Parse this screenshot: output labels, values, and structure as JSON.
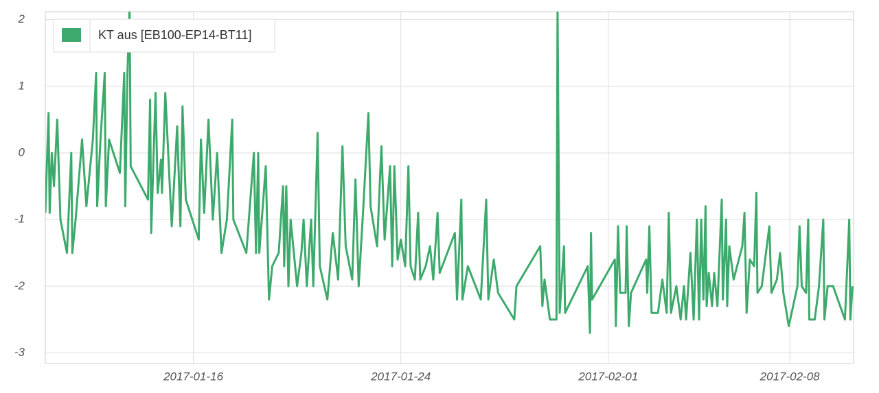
{
  "chart_data": {
    "type": "line",
    "x": [
      "2017-01-10 07:00",
      "2017-01-10 10:00",
      "2017-01-10 11:00",
      "2017-01-10 13:00",
      "2017-01-10 15:00",
      "2017-01-10 18:00",
      "2017-01-10 21:00",
      "2017-01-11 03:00",
      "2017-01-11 07:00",
      "2017-01-11 08:00",
      "2017-01-11 11:00",
      "2017-01-11 17:00",
      "2017-01-11 21:00",
      "2017-01-12 03:00",
      "2017-01-12 06:00",
      "2017-01-12 07:00",
      "2017-01-12 10:00",
      "2017-01-12 14:00",
      "2017-01-12 15:00",
      "2017-01-12 18:00",
      "2017-01-13 04:00",
      "2017-01-13 08:00",
      "2017-01-13 09:00",
      "2017-01-13 11:00",
      "2017-01-13 13:00",
      "2017-01-13 14:00",
      "2017-01-14 06:00",
      "2017-01-14 08:00",
      "2017-01-14 09:00",
      "2017-01-14 13:00",
      "2017-01-14 15:00",
      "2017-01-14 18:00",
      "2017-01-14 19:00",
      "2017-01-14 22:00",
      "2017-01-15 04:00",
      "2017-01-15 09:00",
      "2017-01-15 12:00",
      "2017-01-15 14:00",
      "2017-01-15 17:00",
      "2017-01-16 05:00",
      "2017-01-16 07:00",
      "2017-01-16 10:00",
      "2017-01-16 14:00",
      "2017-01-16 18:00",
      "2017-01-16 22:00",
      "2017-01-17 02:00",
      "2017-01-17 07:00",
      "2017-01-17 12:00",
      "2017-01-17 13:00",
      "2017-01-18 01:00",
      "2017-01-18 08:00",
      "2017-01-18 10:00",
      "2017-01-18 12:00",
      "2017-01-18 13:00",
      "2017-01-18 19:00",
      "2017-01-18 22:00",
      "2017-01-19 01:00",
      "2017-01-19 07:00",
      "2017-01-19 09:00",
      "2017-01-19 11:00",
      "2017-01-19 12:00",
      "2017-01-19 14:00",
      "2017-01-19 16:00",
      "2017-01-19 18:00",
      "2017-01-20 00:00",
      "2017-01-20 04:00",
      "2017-01-20 06:00",
      "2017-01-20 09:00",
      "2017-01-20 13:00",
      "2017-01-20 15:00",
      "2017-01-20 19:00",
      "2017-01-20 21:00",
      "2017-01-21 04:00",
      "2017-01-21 09:00",
      "2017-01-21 14:00",
      "2017-01-21 18:00",
      "2017-01-21 21:00",
      "2017-01-22 03:00",
      "2017-01-22 06:00",
      "2017-01-22 09:00",
      "2017-01-22 13:00",
      "2017-01-22 18:00",
      "2017-01-22 20:00",
      "2017-01-23 02:00",
      "2017-01-23 06:00",
      "2017-01-23 09:00",
      "2017-01-23 14:00",
      "2017-01-23 16:00",
      "2017-01-23 18:00",
      "2017-01-23 21:00",
      "2017-01-24 00:00",
      "2017-01-24 04:00",
      "2017-01-24 07:00",
      "2017-01-24 09:00",
      "2017-01-24 13:00",
      "2017-01-24 16:00",
      "2017-01-24 18:00",
      "2017-01-24 23:00",
      "2017-01-25 03:00",
      "2017-01-25 06:00",
      "2017-01-25 10:00",
      "2017-01-25 12:00",
      "2017-01-26 02:00",
      "2017-01-26 04:00",
      "2017-01-26 08:00",
      "2017-01-26 09:00",
      "2017-01-26 14:00",
      "2017-01-27 02:00",
      "2017-01-27 07:00",
      "2017-01-27 09:00",
      "2017-01-27 14:00",
      "2017-01-27 18:00",
      "2017-01-28 09:00",
      "2017-01-28 11:00",
      "2017-01-29 09:00",
      "2017-01-29 11:00",
      "2017-01-29 13:00",
      "2017-01-29 18:00",
      "2017-01-30 00:00",
      "2017-01-30 01:00",
      "2017-01-30 03:00",
      "2017-01-30 07:00",
      "2017-01-30 08:00",
      "2017-01-31 05:00",
      "2017-01-31 07:00",
      "2017-01-31 08:00",
      "2017-01-31 09:00",
      "2017-02-01 06:00",
      "2017-02-01 07:00",
      "2017-02-01 09:00",
      "2017-02-01 11:00",
      "2017-02-01 16:00",
      "2017-02-01 17:00",
      "2017-02-01 19:00",
      "2017-02-01 21:00",
      "2017-02-02 11:00",
      "2017-02-02 12:00",
      "2017-02-02 14:00",
      "2017-02-02 16:00",
      "2017-02-02 22:00",
      "2017-02-03 02:00",
      "2017-02-03 06:00",
      "2017-02-03 08:00",
      "2017-02-03 10:00",
      "2017-02-03 15:00",
      "2017-02-03 19:00",
      "2017-02-03 22:00",
      "2017-02-04 00:00",
      "2017-02-04 04:00",
      "2017-02-04 07:00",
      "2017-02-04 10:00",
      "2017-02-04 12:00",
      "2017-02-04 14:00",
      "2017-02-04 16:00",
      "2017-02-04 18:00",
      "2017-02-04 19:00",
      "2017-02-04 21:00",
      "2017-02-05 00:00",
      "2017-02-05 02:00",
      "2017-02-05 05:00",
      "2017-02-05 09:00",
      "2017-02-05 10:00",
      "2017-02-05 13:00",
      "2017-02-05 14:00",
      "2017-02-05 16:00",
      "2017-02-05 20:00",
      "2017-02-06 04:00",
      "2017-02-06 06:00",
      "2017-02-06 08:00",
      "2017-02-06 11:00",
      "2017-02-06 15:00",
      "2017-02-06 17:00",
      "2017-02-06 18:00",
      "2017-02-06 22:00",
      "2017-02-07 05:00",
      "2017-02-07 07:00",
      "2017-02-07 12:00",
      "2017-02-07 15:00",
      "2017-02-07 18:00",
      "2017-02-07 23:00",
      "2017-02-08 07:00",
      "2017-02-08 09:00",
      "2017-02-08 11:00",
      "2017-02-08 15:00",
      "2017-02-08 17:00",
      "2017-02-08 18:00",
      "2017-02-08 23:00",
      "2017-02-09 03:00",
      "2017-02-09 07:00",
      "2017-02-09 08:00",
      "2017-02-09 11:00",
      "2017-02-09 16:00",
      "2017-02-10 03:00",
      "2017-02-10 07:00",
      "2017-02-10 08:00",
      "2017-02-10 10:00"
    ],
    "series": [
      {
        "name": "KT aus [EB100-EP14-BT11]",
        "color": "#3daa6c",
        "values": [
          -0.9,
          0.6,
          -0.9,
          0,
          -0.5,
          0.5,
          -1.0,
          -1.5,
          0,
          -1.5,
          -1.0,
          0.2,
          -0.8,
          0.2,
          1.2,
          -0.8,
          0.2,
          1.2,
          -0.8,
          0.2,
          -0.3,
          1.2,
          -0.8,
          1.2,
          2.2,
          -0.2,
          -0.7,
          0.8,
          -1.2,
          0.9,
          -0.6,
          -0.1,
          -0.6,
          0.9,
          -1.1,
          0.4,
          -1.1,
          0.7,
          -0.7,
          -1.3,
          0.2,
          -0.9,
          0.5,
          -1.0,
          0,
          -1.5,
          -1.0,
          0.5,
          -1.0,
          -1.5,
          0,
          -1.5,
          0,
          -1.5,
          -0.2,
          -2.2,
          -1.7,
          -1.5,
          -1.0,
          -0.5,
          -1.7,
          -0.5,
          -2.0,
          -1.0,
          -2.0,
          -1.5,
          -1.0,
          -2.0,
          -1.0,
          -2.0,
          0.3,
          -1.7,
          -2.2,
          -1.2,
          -1.9,
          0.1,
          -1.4,
          -1.9,
          -0.4,
          -2.0,
          -0.9,
          0.6,
          -0.8,
          -1.4,
          0.1,
          -1.3,
          -0.2,
          -1.7,
          -0.2,
          -1.6,
          -1.3,
          -1.7,
          -0.2,
          -1.7,
          -1.9,
          -0.9,
          -1.9,
          -1.7,
          -1.4,
          -1.9,
          -0.9,
          -1.8,
          -1.2,
          -2.2,
          -0.7,
          -2.2,
          -1.7,
          -2.2,
          -0.7,
          -2.2,
          -1.6,
          -2.1,
          -2.5,
          -2.0,
          -1.4,
          -2.3,
          -1.9,
          -2.5,
          -2.5,
          2.2,
          -2.4,
          -1.4,
          -2.4,
          -1.7,
          -2.7,
          -1.2,
          -2.2,
          -1.6,
          -2.6,
          -1.1,
          -2.1,
          -2.1,
          -1.1,
          -2.6,
          -2.1,
          -1.6,
          -2.1,
          -1.1,
          -2.4,
          -2.4,
          -1.9,
          -2.4,
          -0.9,
          -2.4,
          -2.0,
          -2.5,
          -2.0,
          -2.5,
          -1.5,
          -2.5,
          -1.0,
          -2.5,
          -1.0,
          -2.2,
          -0.8,
          -2.3,
          -1.8,
          -2.3,
          -1.8,
          -2.3,
          -0.7,
          -2.2,
          -1.0,
          -2.3,
          -1.4,
          -1.9,
          -1.4,
          -0.9,
          -2.4,
          -1.6,
          -1.7,
          -0.6,
          -2.1,
          -2.0,
          -1.1,
          -2.1,
          -1.9,
          -1.5,
          -2.1,
          -2.6,
          -2.0,
          -1.1,
          -2.0,
          -2.1,
          -1.0,
          -2.5,
          -2.5,
          -2.0,
          -1.0,
          -2.5,
          -2.0,
          -2.0,
          -2.5,
          -1.0,
          -2.5,
          -2.0
        ]
      }
    ],
    "xlim": [
      "2017-01-10 07:00",
      "2017-02-10 11:00"
    ],
    "xticks": [
      "2017-01-16",
      "2017-01-24",
      "2017-02-01",
      "2017-02-08"
    ],
    "ylim": [
      -3.16,
      2.12
    ],
    "yticks": [
      -3,
      -2,
      -1,
      0,
      1,
      2
    ],
    "grid": true,
    "legend": "top-left"
  }
}
